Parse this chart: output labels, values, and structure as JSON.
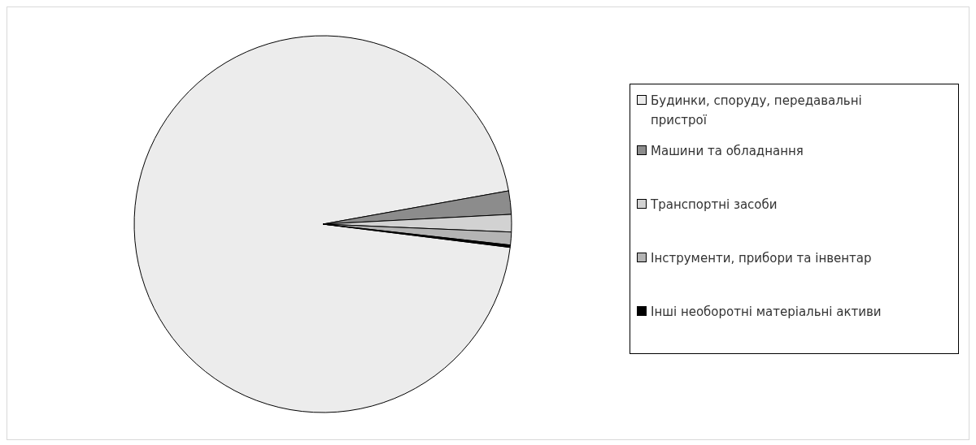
{
  "chart_data": {
    "type": "pie",
    "categories": [
      "Будинки, споруду, передавальні пристрої",
      "Машини та обладнання",
      "Транспортні засоби",
      "Інструменти, прибори та інвентар",
      "Інші необоротні матеріальні активи"
    ],
    "values": [
      95.2,
      2.0,
      1.5,
      1.1,
      0.2
    ],
    "colors": [
      "#ececec",
      "#8c8c8c",
      "#d2d2d2",
      "#b4b4b4",
      "#000000"
    ],
    "legend": "right"
  }
}
